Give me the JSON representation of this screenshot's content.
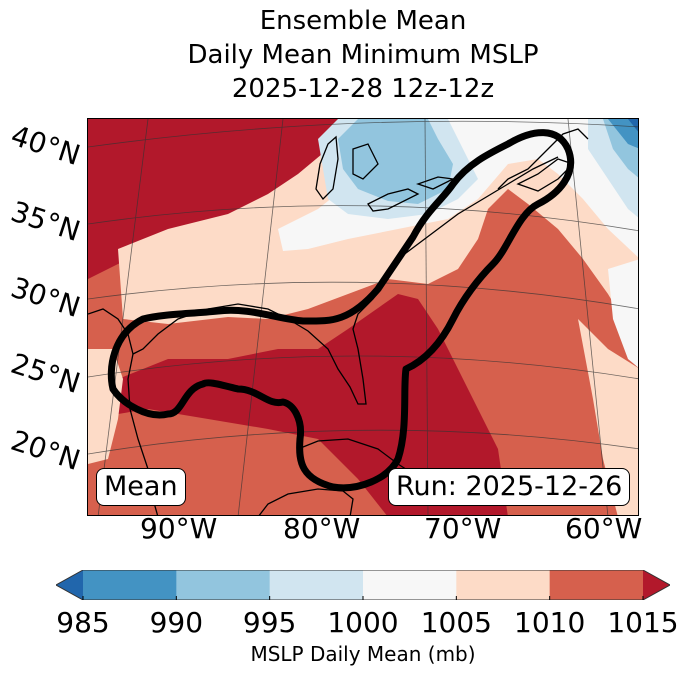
{
  "title": {
    "line1": "Ensemble Mean",
    "line2": "Daily Mean Minimum MSLP",
    "line3": "2025-12-28 12z-12z"
  },
  "map": {
    "lat_labels": [
      "40°N",
      "35°N",
      "30°N",
      "25°N",
      "20°N"
    ],
    "lon_labels": [
      "90°W",
      "80°W",
      "70°W",
      "60°W"
    ],
    "box_left": "Mean",
    "box_right": "Run: 2025-12-26",
    "colors": {
      "lt985": "#2166ac",
      "b985_990": "#4393c3",
      "b990_995": "#92c5de",
      "b995_1000": "#d1e5f0",
      "b1000_1005": "#f7f7f7",
      "b1005_1010": "#fddbc7",
      "b1010_1015": "#d6604d",
      "gt1015": "#b2182b"
    }
  },
  "colorbar": {
    "ticks": [
      "985",
      "990",
      "995",
      "1000",
      "1005",
      "1010",
      "1015"
    ],
    "label": "MSLP Daily Mean (mb)",
    "colors": [
      "#2166ac",
      "#4393c3",
      "#92c5de",
      "#d1e5f0",
      "#f7f7f7",
      "#fddbc7",
      "#d6604d",
      "#b2182b"
    ],
    "extend": "both"
  }
}
